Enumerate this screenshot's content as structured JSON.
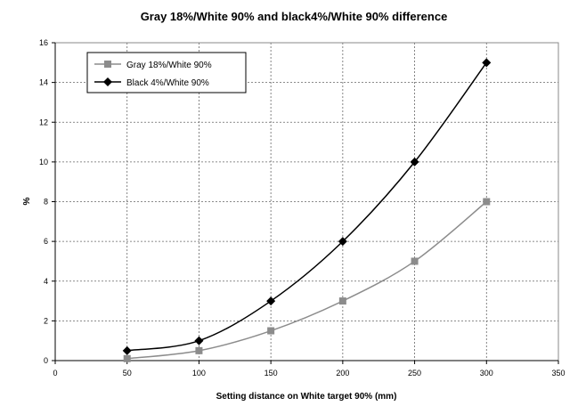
{
  "chart_data": {
    "type": "line",
    "title": "Gray 18%/White 90% and black4%/White 90% difference",
    "xlabel": "Setting distance on White target 90% (mm)",
    "ylabel": "%",
    "xlim": [
      0,
      350
    ],
    "ylim": [
      0,
      16
    ],
    "xticks": [
      0,
      50,
      100,
      150,
      200,
      250,
      300,
      350
    ],
    "yticks": [
      0,
      2,
      4,
      6,
      8,
      10,
      12,
      14,
      16
    ],
    "grid": true,
    "legend_position": "top-left",
    "x": [
      50,
      100,
      150,
      200,
      250,
      300
    ],
    "series": [
      {
        "name": "Gray 18%/White 90%",
        "marker": "square",
        "color": "#8c8c8c",
        "values": [
          0.1,
          0.5,
          1.5,
          3,
          5,
          8
        ]
      },
      {
        "name": "Black 4%/White 90%",
        "marker": "diamond",
        "color": "#000000",
        "values": [
          0.5,
          1,
          3,
          6,
          10,
          15
        ]
      }
    ]
  }
}
